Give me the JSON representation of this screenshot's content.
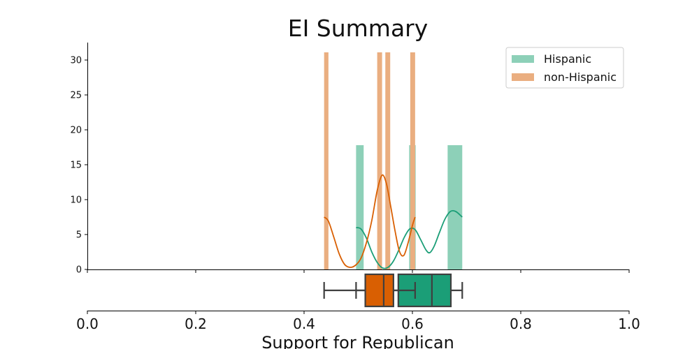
{
  "chart_data": {
    "type": "histogram-kde-boxplot",
    "title": "EI Summary",
    "xlabel": "Support for Republican",
    "ylabel": "",
    "xlim": [
      0.0,
      1.0
    ],
    "ylim": [
      0,
      32.5
    ],
    "xticks": [
      "0.0",
      "0.2",
      "0.4",
      "0.6",
      "0.8",
      "1.0"
    ],
    "yticks": [
      "0",
      "5",
      "10",
      "15",
      "20",
      "25",
      "30"
    ],
    "legend_position": "top-right",
    "series": [
      {
        "name": "Hispanic",
        "color": "#1b9e77",
        "bar_color": "#8dd0b8",
        "bins": [
          {
            "x0": 0.496,
            "x1": 0.51,
            "height": 17.8
          },
          {
            "x0": 0.594,
            "x1": 0.606,
            "height": 17.8
          },
          {
            "x0": 0.665,
            "x1": 0.692,
            "height": 17.8
          }
        ],
        "kde": [
          [
            0.496,
            6.0
          ],
          [
            0.505,
            5.8
          ],
          [
            0.515,
            4.5
          ],
          [
            0.525,
            2.5
          ],
          [
            0.535,
            1.0
          ],
          [
            0.545,
            0.2
          ],
          [
            0.555,
            0.3
          ],
          [
            0.565,
            1.2
          ],
          [
            0.575,
            2.8
          ],
          [
            0.585,
            4.6
          ],
          [
            0.595,
            5.8
          ],
          [
            0.605,
            5.7
          ],
          [
            0.615,
            4.3
          ],
          [
            0.625,
            2.8
          ],
          [
            0.632,
            2.4
          ],
          [
            0.64,
            3.3
          ],
          [
            0.65,
            5.3
          ],
          [
            0.66,
            7.2
          ],
          [
            0.67,
            8.3
          ],
          [
            0.68,
            8.3
          ],
          [
            0.692,
            7.5
          ]
        ],
        "box": {
          "whisker_low": 0.496,
          "q1": 0.574,
          "median": 0.636,
          "q3": 0.671,
          "whisker_high": 0.692
        }
      },
      {
        "name": "non-Hispanic",
        "color": "#d95f02",
        "bar_color": "#eaae80",
        "bins": [
          {
            "x0": 0.437,
            "x1": 0.445,
            "height": 31.1
          },
          {
            "x0": 0.535,
            "x1": 0.544,
            "height": 31.1
          },
          {
            "x0": 0.55,
            "x1": 0.559,
            "height": 31.1
          },
          {
            "x0": 0.596,
            "x1": 0.605,
            "height": 31.1
          }
        ],
        "kde": [
          [
            0.437,
            7.5
          ],
          [
            0.445,
            6.9
          ],
          [
            0.455,
            4.6
          ],
          [
            0.465,
            2.2
          ],
          [
            0.475,
            0.7
          ],
          [
            0.485,
            0.3
          ],
          [
            0.495,
            0.6
          ],
          [
            0.505,
            1.6
          ],
          [
            0.515,
            3.8
          ],
          [
            0.525,
            7.0
          ],
          [
            0.535,
            11.3
          ],
          [
            0.544,
            13.5
          ],
          [
            0.552,
            12.3
          ],
          [
            0.56,
            9.0
          ],
          [
            0.568,
            5.5
          ],
          [
            0.576,
            2.6
          ],
          [
            0.584,
            2.0
          ],
          [
            0.592,
            3.8
          ],
          [
            0.6,
            6.3
          ],
          [
            0.605,
            7.5
          ]
        ],
        "box": {
          "whisker_low": 0.437,
          "q1": 0.513,
          "median": 0.547,
          "q3": 0.565,
          "whisker_high": 0.605
        }
      }
    ]
  }
}
